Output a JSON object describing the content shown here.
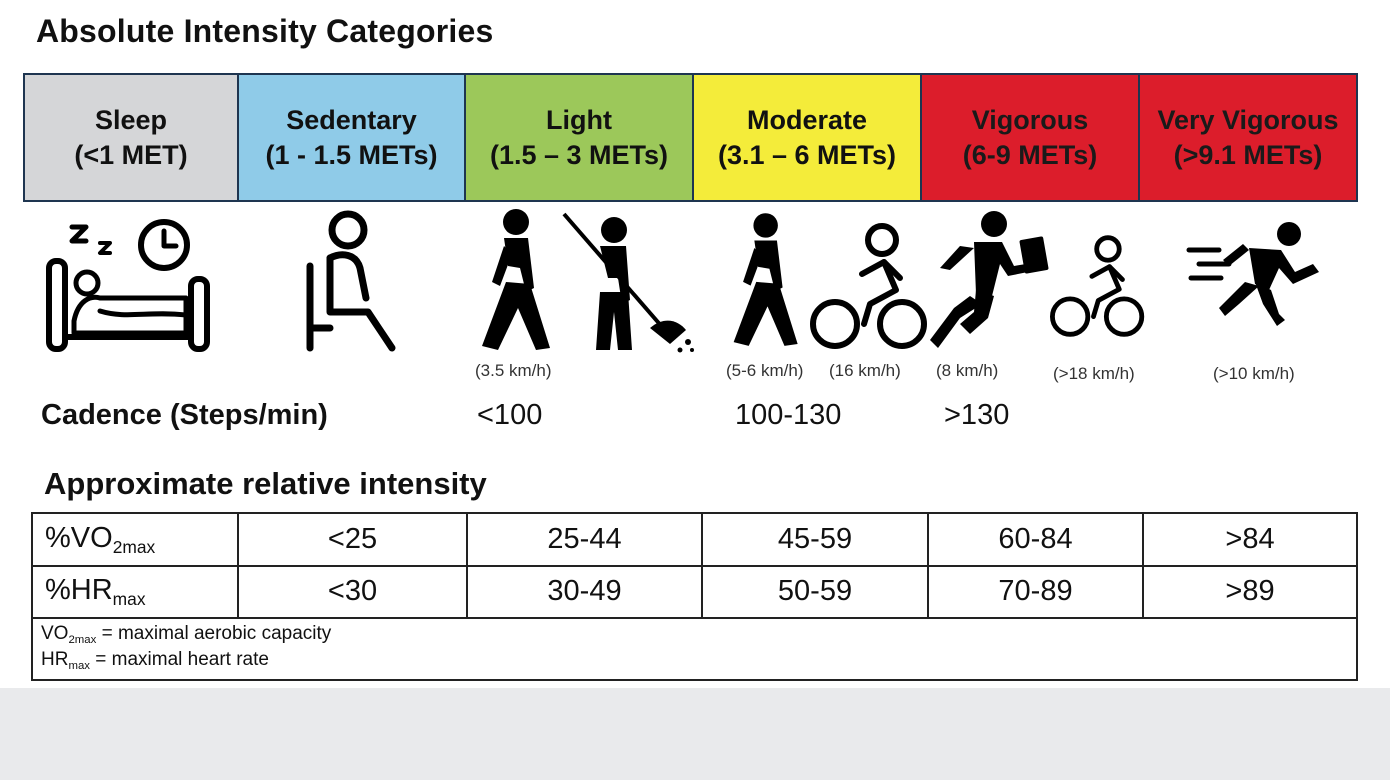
{
  "title": "Absolute Intensity Categories",
  "categories": [
    {
      "name": "Sleep",
      "mets": "(<1 MET)",
      "color": "#d5d6d8",
      "text_color": "#111111"
    },
    {
      "name": "Sedentary",
      "mets": "(1 - 1.5 METs)",
      "color": "#8fcbe8",
      "text_color": "#111111"
    },
    {
      "name": "Light",
      "mets": "(1.5 – 3 METs)",
      "color": "#9cc85a",
      "text_color": "#111111"
    },
    {
      "name": "Moderate",
      "mets": "(3.1 – 6 METs)",
      "color": "#f4ec3a",
      "text_color": "#111111"
    },
    {
      "name": "Vigorous",
      "mets": "(6-9 METs)",
      "color": "#dc1d2b",
      "text_color": "#1a1a1a"
    },
    {
      "name": "Very Vigorous",
      "mets": "(>9.1 METs)",
      "color": "#dc1d2b",
      "text_color": "#1a1a1a"
    }
  ],
  "icons": [
    "sleep-bed-icon",
    "seated-person-icon",
    "walking-person-icon",
    "sweeping-person-icon",
    "walking-person-icon",
    "cyclist-icon",
    "running-businessman-icon",
    "cyclist-icon",
    "sprinter-icon"
  ],
  "speeds": [
    "(3.5 km/h)",
    "(5-6 km/h)",
    "(16 km/h)",
    "(8 km/h)",
    "(>18 km/h)",
    "(>10 km/h)"
  ],
  "cadence": {
    "label": "Cadence (Steps/min)",
    "values": [
      "<100",
      "100-130",
      ">130"
    ]
  },
  "relative": {
    "title": "Approximate relative intensity",
    "vo2": {
      "label_main": "%VO",
      "label_sub": "2max",
      "values": [
        "<25",
        "25-44",
        "45-59",
        "60-84",
        ">84"
      ]
    },
    "hr": {
      "label_main": "%HR",
      "label_sub": "max",
      "values": [
        "<30",
        "30-49",
        "50-59",
        "70-89",
        ">89"
      ]
    },
    "notes": [
      {
        "main": "VO",
        "sub": "2max",
        "rest": " = maximal aerobic capacity"
      },
      {
        "main": "HR",
        "sub": "max",
        "rest": " = maximal heart rate"
      }
    ]
  }
}
